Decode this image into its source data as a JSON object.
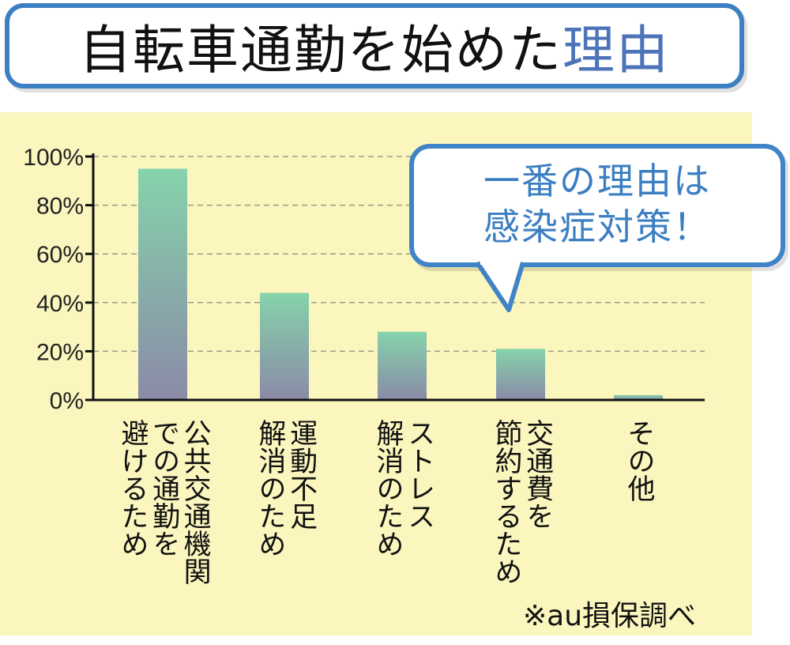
{
  "title": {
    "main": "自転車通勤を始めた",
    "highlight": "理由"
  },
  "bubble": {
    "line1": "一番の理由は",
    "line2": "感染症対策！"
  },
  "source": "※au損保調べ",
  "colors": {
    "bar_top": "#86d3ab",
    "bar_bottom": "#8a8aa7",
    "frame": "#3d7fc3",
    "panel": "#fbf6be"
  },
  "chart_data": {
    "type": "bar",
    "categories": [
      [
        "公共交通機関",
        "での通勤を",
        "避けるため"
      ],
      [
        "運動不足",
        "解消のため"
      ],
      [
        "ストレス",
        "解消のため"
      ],
      [
        "交通費を",
        "節約するため"
      ],
      [
        "その他"
      ]
    ],
    "values": [
      95,
      44,
      28,
      21,
      2
    ],
    "ylim": [
      0,
      100
    ],
    "yticks": [
      "0%",
      "20%",
      "40%",
      "60%",
      "80%",
      "100%"
    ],
    "grid": true
  }
}
